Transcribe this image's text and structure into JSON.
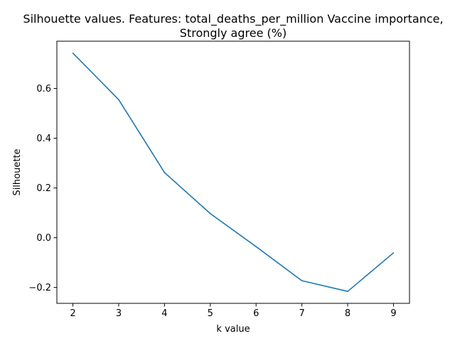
{
  "chart_data": {
    "type": "line",
    "title_lines": [
      "Silhouette values. Features:  total_deaths_per_million Vaccine importance,",
      "Strongly agree (%)"
    ],
    "xlabel": "k value",
    "ylabel": "Silhouette",
    "x": [
      2,
      3,
      4,
      5,
      6,
      7,
      8,
      9
    ],
    "series": [
      {
        "values": [
          0.742,
          0.555,
          0.262,
          0.097,
          -0.036,
          -0.173,
          -0.216,
          -0.061
        ]
      }
    ],
    "xticks": [
      2,
      3,
      4,
      5,
      6,
      7,
      8,
      9
    ],
    "yticks": [
      -0.2,
      0.0,
      0.2,
      0.4,
      0.6
    ],
    "ytick_labels": [
      "−0.2",
      "0.0",
      "0.2",
      "0.4",
      "0.6"
    ],
    "xlim": [
      1.65,
      9.35
    ],
    "ylim": [
      -0.264,
      0.79
    ],
    "grid": false,
    "colors": {
      "line": "#1f77b4",
      "axes": "#000000",
      "text": "#000000"
    }
  }
}
